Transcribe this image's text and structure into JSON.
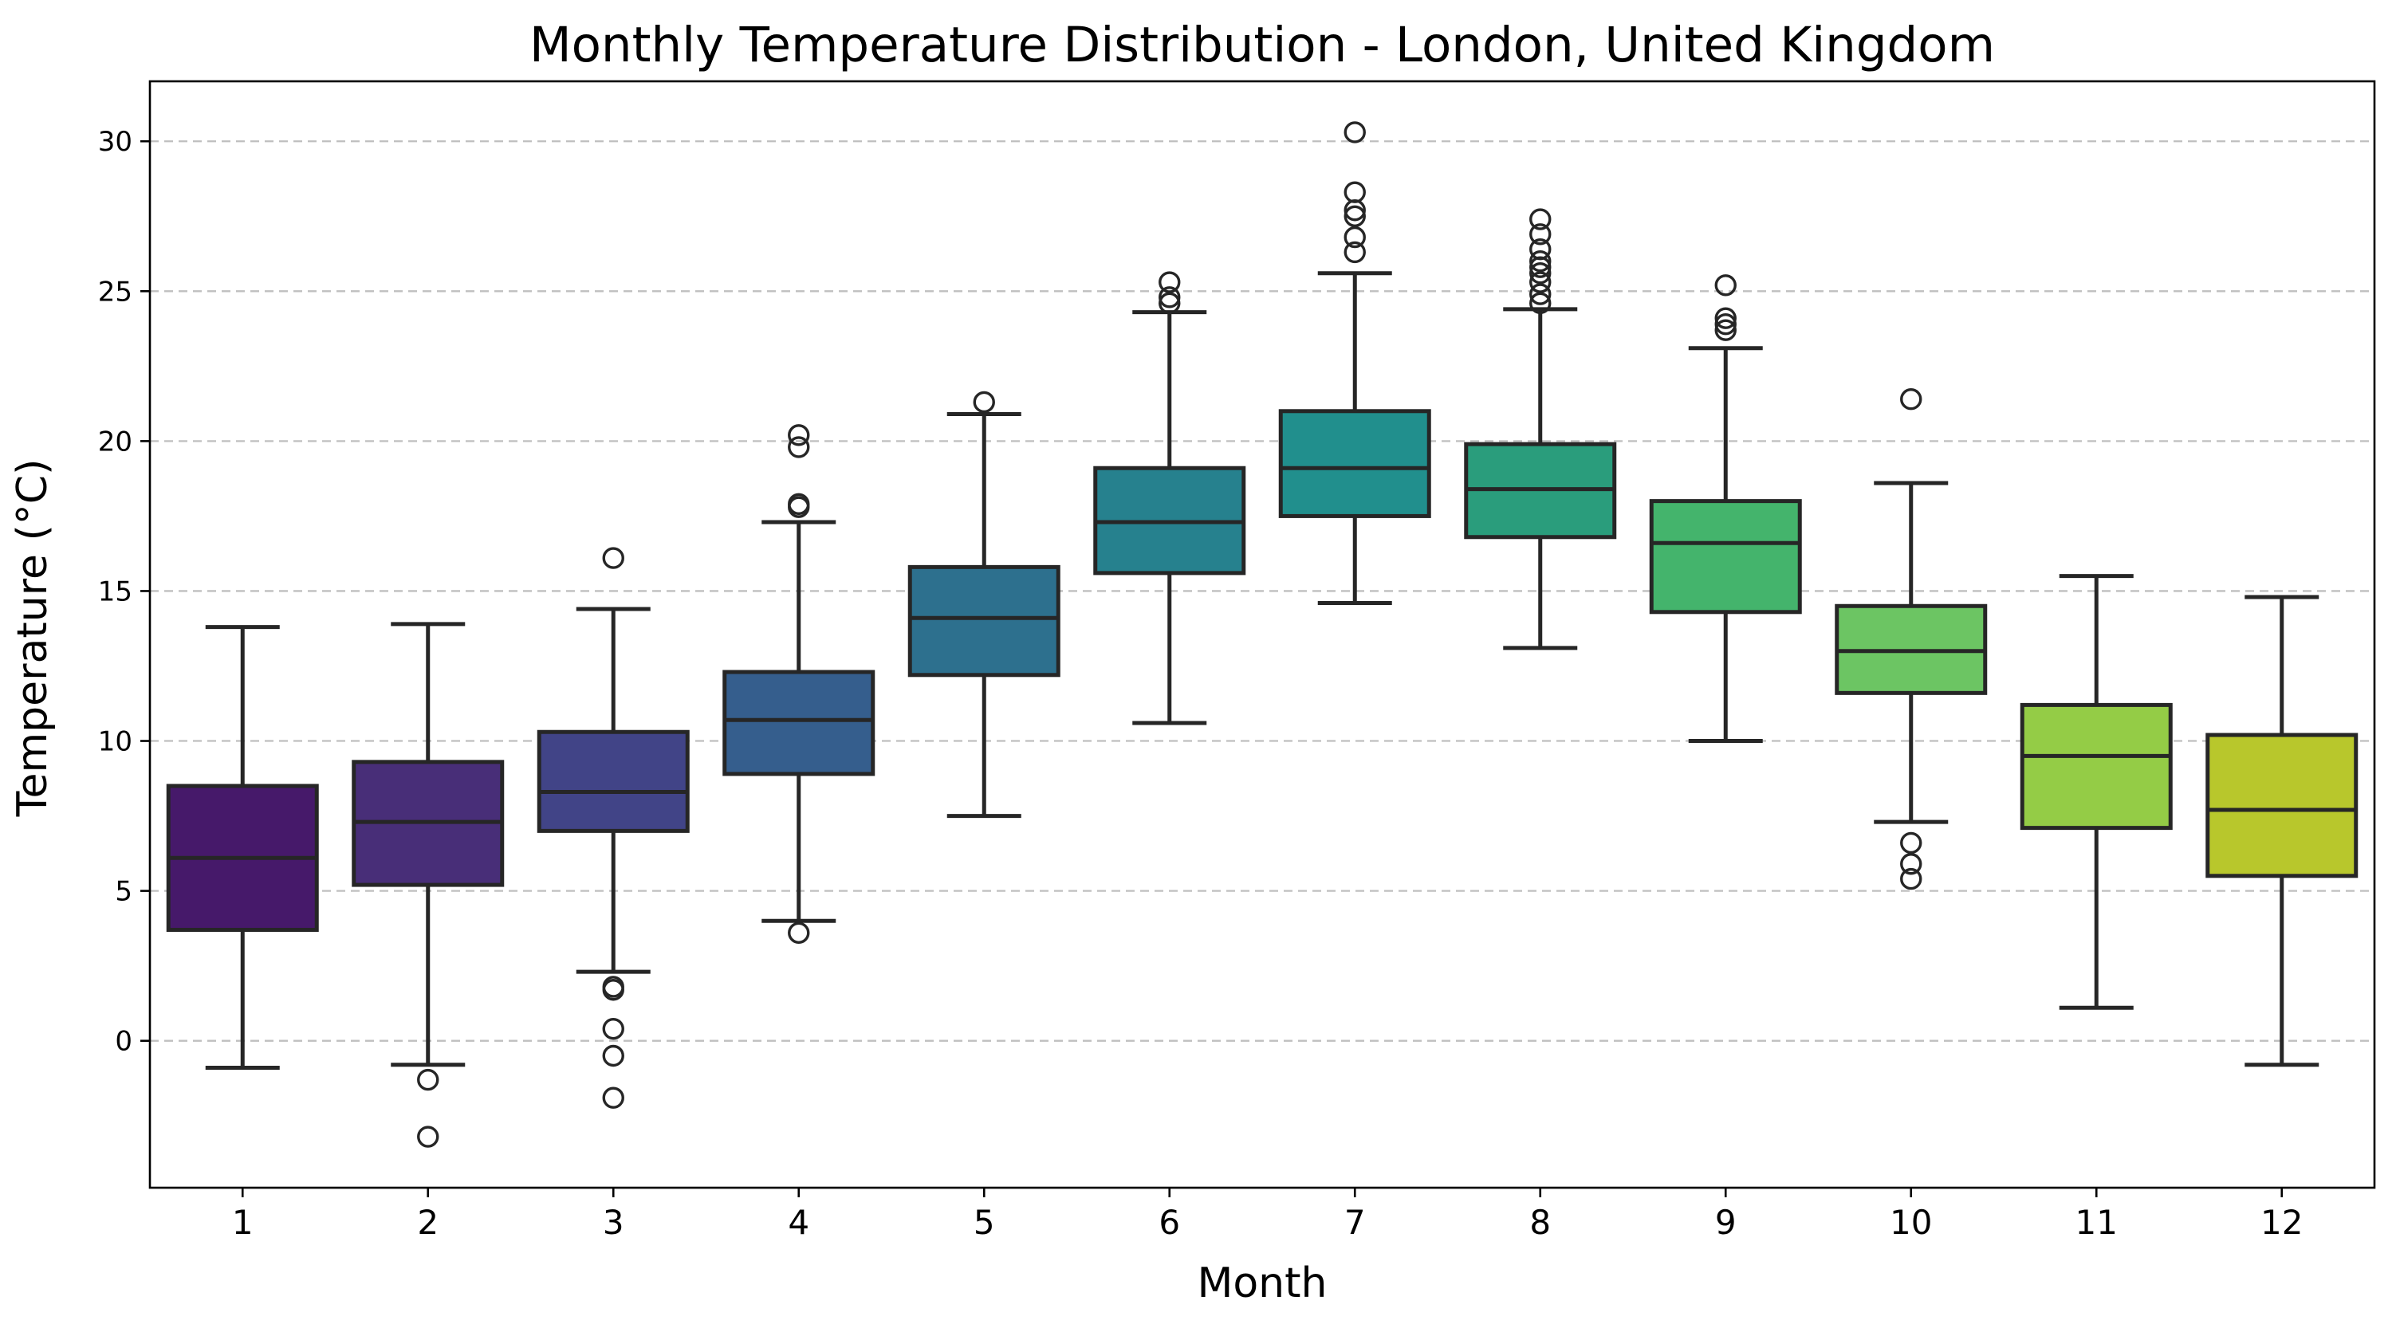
{
  "chart_data": {
    "type": "box",
    "title": "Monthly Temperature Distribution - London, United Kingdom",
    "xlabel": "Month",
    "ylabel": "Temperature (°C)",
    "ylim": [
      -4.9,
      32.0
    ],
    "yticks": [
      0,
      5,
      10,
      15,
      20,
      25,
      30
    ],
    "grid": "horizontal dashed",
    "categories": [
      "1",
      "2",
      "3",
      "4",
      "5",
      "6",
      "7",
      "8",
      "9",
      "10",
      "11",
      "12"
    ],
    "boxes": [
      {
        "month": "1",
        "whislo": -0.9,
        "q1": 3.7,
        "med": 6.1,
        "q3": 8.5,
        "whishi": 13.8,
        "fliers": [],
        "color": "#46196a"
      },
      {
        "month": "2",
        "whislo": -0.8,
        "q1": 5.2,
        "med": 7.3,
        "q3": 9.3,
        "whishi": 13.9,
        "fliers": [
          -1.3,
          -3.2
        ],
        "color": "#482e78"
      },
      {
        "month": "3",
        "whislo": 2.3,
        "q1": 7.0,
        "med": 8.3,
        "q3": 10.3,
        "whishi": 14.4,
        "fliers": [
          16.1,
          1.8,
          1.7,
          0.4,
          -0.5,
          -1.9
        ],
        "color": "#414487"
      },
      {
        "month": "4",
        "whislo": 4.0,
        "q1": 8.9,
        "med": 10.7,
        "q3": 12.3,
        "whishi": 17.3,
        "fliers": [
          20.2,
          19.8,
          17.9,
          17.8,
          3.6
        ],
        "color": "#355e8d"
      },
      {
        "month": "5",
        "whislo": 7.5,
        "q1": 12.2,
        "med": 14.1,
        "q3": 15.8,
        "whishi": 20.9,
        "fliers": [
          21.3
        ],
        "color": "#2d708e"
      },
      {
        "month": "6",
        "whislo": 10.6,
        "q1": 15.6,
        "med": 17.3,
        "q3": 19.1,
        "whishi": 24.3,
        "fliers": [
          25.3,
          24.8,
          24.6
        ],
        "color": "#26818e"
      },
      {
        "month": "7",
        "whislo": 14.6,
        "q1": 17.5,
        "med": 19.1,
        "q3": 21.0,
        "whishi": 25.6,
        "fliers": [
          30.3,
          28.3,
          27.7,
          27.5,
          26.8,
          26.3
        ],
        "color": "#218f8d"
      },
      {
        "month": "8",
        "whislo": 13.1,
        "q1": 16.8,
        "med": 18.4,
        "q3": 19.9,
        "whishi": 24.4,
        "fliers": [
          27.4,
          26.9,
          26.4,
          26.0,
          25.8,
          25.6,
          25.3,
          24.9,
          24.6
        ],
        "color": "#2a9d7c"
      },
      {
        "month": "9",
        "whislo": 10.0,
        "q1": 14.3,
        "med": 16.6,
        "q3": 18.0,
        "whishi": 23.1,
        "fliers": [
          25.2,
          24.1,
          23.9,
          23.7
        ],
        "color": "#44b46c"
      },
      {
        "month": "10",
        "whislo": 7.3,
        "q1": 11.6,
        "med": 13.0,
        "q3": 14.5,
        "whishi": 18.6,
        "fliers": [
          21.4,
          6.6,
          5.9,
          5.4
        ],
        "color": "#6cc563"
      },
      {
        "month": "11",
        "whislo": 1.1,
        "q1": 7.1,
        "med": 9.5,
        "q3": 11.2,
        "whishi": 15.5,
        "fliers": [],
        "color": "#94cc46"
      },
      {
        "month": "12",
        "whislo": -0.8,
        "q1": 5.5,
        "med": 7.7,
        "q3": 10.2,
        "whishi": 14.8,
        "fliers": [],
        "color": "#b8c72c"
      }
    ]
  }
}
